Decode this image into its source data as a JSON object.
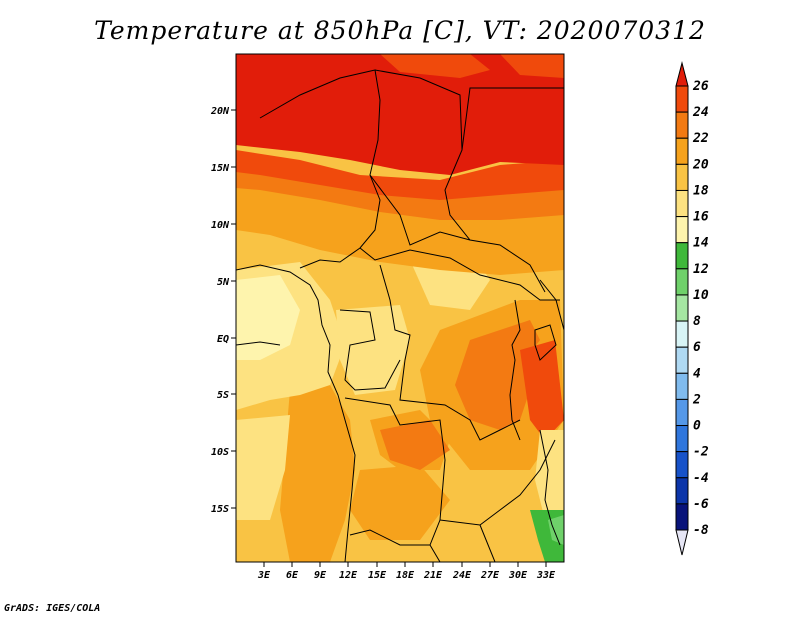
{
  "title": "Temperature at 850hPa [C], VT: 2020070312",
  "credit": "GrADS: IGES/COLA",
  "lat_labels": [
    "20N",
    "15N",
    "10N",
    "5N",
    "EQ",
    "5S",
    "10S",
    "15S"
  ],
  "lon_labels": [
    "3E",
    "6E",
    "9E",
    "12E",
    "15E",
    "18E",
    "21E",
    "24E",
    "27E",
    "30E",
    "33E"
  ],
  "colorbar": {
    "levels": [
      "26",
      "24",
      "22",
      "20",
      "18",
      "16",
      "14",
      "12",
      "10",
      "8",
      "6",
      "4",
      "2",
      "0",
      "-2",
      "-4",
      "-6",
      "-8"
    ],
    "colors": [
      "#e11d0a",
      "#f04a0c",
      "#f37a12",
      "#f6a21c",
      "#f9c344",
      "#fde281",
      "#fef4ad",
      "#3fb83a",
      "#6fd16a",
      "#a5e6a2",
      "#d8f4f6",
      "#afd9f3",
      "#80bbee",
      "#5598e8",
      "#2f76dd",
      "#1752c9",
      "#0c35a9",
      "#08137a"
    ],
    "top_arrow_color": "#e11d0a",
    "bottom_arrow_color": "#e6e6f5"
  }
}
